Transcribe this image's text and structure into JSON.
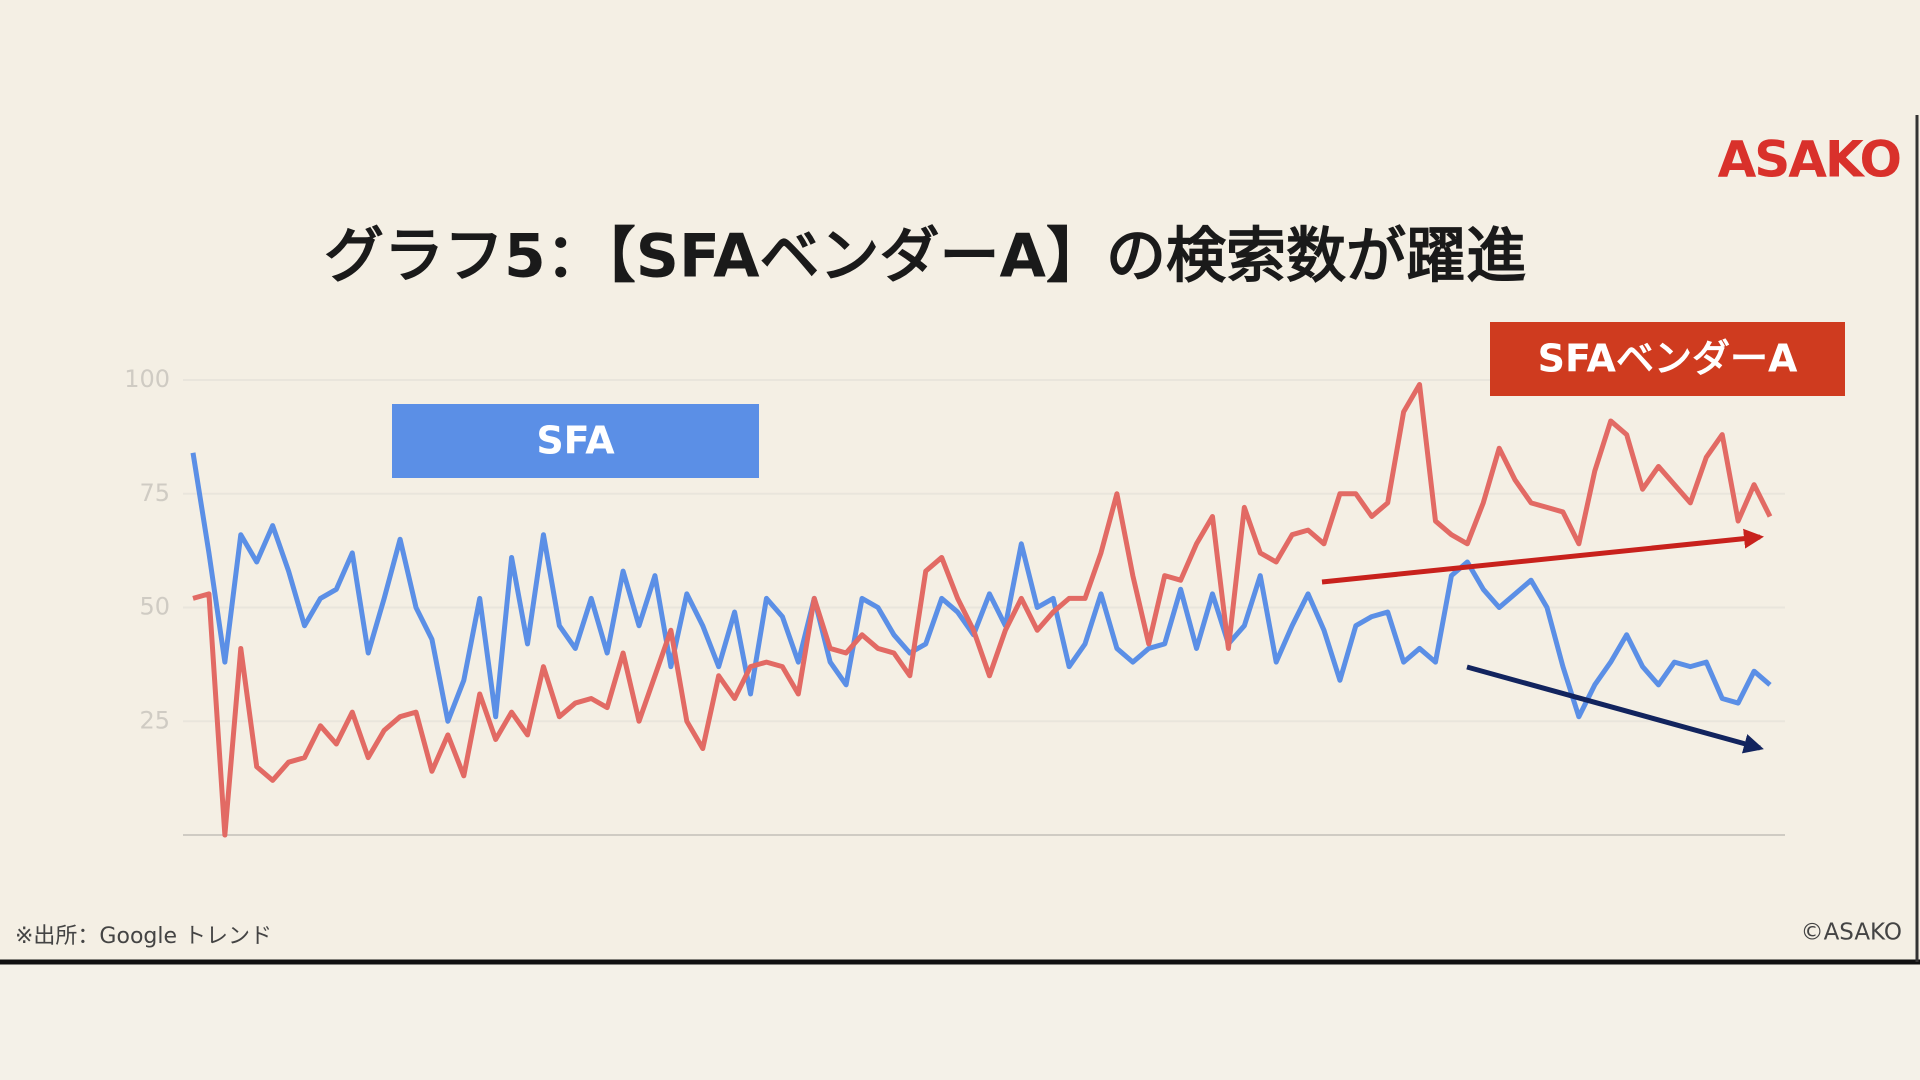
{
  "chart_data": {
    "type": "line",
    "title": "グラフ5：【SFAベンダーA】の検索数が躍進",
    "logo": "ASAKO",
    "source": "※出所：Google トレンド",
    "copyright": "©ASAKO",
    "ylim": [
      0,
      100
    ],
    "yticks": [
      25,
      50,
      75,
      100
    ],
    "grid": true,
    "series": [
      {
        "name": "SFA",
        "color": "#5b8fe6",
        "values": [
          84,
          62,
          38,
          66,
          60,
          68,
          58,
          46,
          52,
          54,
          62,
          40,
          52,
          65,
          50,
          43,
          25,
          34,
          52,
          26,
          61,
          42,
          66,
          46,
          41,
          52,
          40,
          58,
          46,
          57,
          37,
          53,
          46,
          37,
          49,
          31,
          52,
          48,
          38,
          52,
          38,
          33,
          52,
          50,
          44,
          40,
          42,
          52,
          49,
          44,
          53,
          46,
          64,
          50,
          52,
          37,
          42,
          53,
          41,
          38,
          41,
          42,
          54,
          41,
          53,
          42,
          46,
          57,
          38,
          46,
          53,
          45,
          34,
          46,
          48,
          49,
          38,
          41,
          38,
          57,
          60,
          54,
          50,
          53,
          56,
          50,
          37,
          26,
          33,
          38,
          44,
          37,
          33,
          38,
          37,
          38,
          30,
          29,
          36,
          33
        ]
      },
      {
        "name": "SFAベンダーA",
        "color": "#e26a64",
        "values": [
          52,
          53,
          0,
          41,
          15,
          12,
          16,
          17,
          24,
          20,
          27,
          17,
          23,
          26,
          27,
          14,
          22,
          13,
          31,
          21,
          27,
          22,
          37,
          26,
          29,
          30,
          28,
          40,
          25,
          35,
          45,
          25,
          19,
          35,
          30,
          37,
          38,
          37,
          31,
          52,
          41,
          40,
          44,
          41,
          40,
          35,
          58,
          61,
          52,
          45,
          35,
          45,
          52,
          45,
          49,
          52,
          52,
          62,
          75,
          57,
          42,
          57,
          56,
          64,
          70,
          41,
          72,
          62,
          60,
          66,
          67,
          64,
          75,
          75,
          70,
          73,
          93,
          99,
          69,
          66,
          64,
          73,
          85,
          78,
          73,
          72,
          71,
          64,
          80,
          91,
          88,
          76,
          81,
          77,
          73,
          83,
          88,
          69,
          77,
          70
        ]
      }
    ]
  }
}
